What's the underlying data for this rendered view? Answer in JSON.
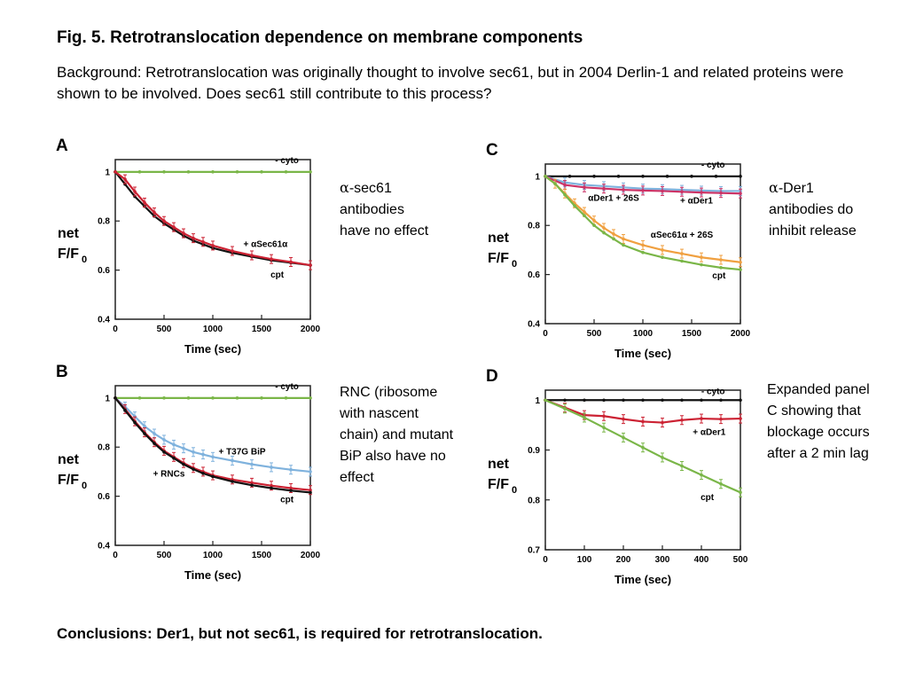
{
  "title": "Fig. 5. Retrotranslocation dependence on membrane components",
  "background_text": "Background: Retrotranslocation was originally thought to involve sec61, but in 2004 Derlin-1 and related proteins were shown to be involved. Does sec61 still contribute to this process?",
  "notes": {
    "a": {
      "greek": "α",
      "text": "-sec61 antibodies have no effect"
    },
    "b": {
      "text": "RNC (ribosome with nascent chain) and mutant BiP also have no effect"
    },
    "c": {
      "greek": "α",
      "text": "-Der1 antibodies do inhibit release"
    },
    "d": {
      "text": "Expanded panel C showing that blockage occurs after a 2 min lag"
    }
  },
  "conclusion": "Conclusions: Der1, but not sec61, is required for retrotranslocation.",
  "colors": {
    "black": "#111111",
    "green": "#7ab648",
    "red": "#cc2233",
    "blue": "#7fb2dd",
    "orange": "#f0a040",
    "pink": "#cc3366"
  },
  "chart_data": [
    {
      "panel_letter": "A",
      "type": "line",
      "xlabel": "Time (sec)",
      "ylabel_line1": "net",
      "ylabel_line2": "F/F",
      "ylabel_sub": "0",
      "xlim": [
        0,
        2000
      ],
      "ylim": [
        0.4,
        1.05
      ],
      "xticks": [
        0,
        500,
        1000,
        1500,
        2000
      ],
      "yticks": [
        0.4,
        0.6,
        0.8,
        1
      ],
      "ytick_labels": [
        "0.4",
        "0.6",
        "0.8",
        "1"
      ],
      "series": [
        {
          "name": "- cyto",
          "color": "green",
          "errorbars": false,
          "x": [
            0,
            250,
            500,
            750,
            1000,
            1250,
            1500,
            1750,
            2000
          ],
          "y": [
            1.0,
            1.0,
            1.0,
            1.0,
            1.0,
            1.0,
            1.0,
            1.0,
            1.0
          ]
        },
        {
          "name": "cpt",
          "color": "black",
          "errorbars": false,
          "x": [
            0,
            100,
            200,
            300,
            400,
            500,
            600,
            700,
            800,
            900,
            1000,
            1200,
            1400,
            1600,
            1800,
            2000
          ],
          "y": [
            1.0,
            0.95,
            0.9,
            0.86,
            0.82,
            0.79,
            0.765,
            0.74,
            0.72,
            0.705,
            0.69,
            0.67,
            0.655,
            0.64,
            0.63,
            0.62
          ]
        },
        {
          "name": "+ αSec61α",
          "color": "red",
          "errorbars": true,
          "x": [
            0,
            100,
            200,
            300,
            400,
            500,
            600,
            700,
            800,
            900,
            1000,
            1200,
            1400,
            1600,
            1800,
            2000
          ],
          "y": [
            1.0,
            0.97,
            0.92,
            0.875,
            0.835,
            0.8,
            0.775,
            0.75,
            0.73,
            0.715,
            0.7,
            0.678,
            0.66,
            0.645,
            0.633,
            0.62
          ]
        }
      ],
      "annotations": [
        {
          "text": "- cyto",
          "x": 1760,
          "y": 1.035
        },
        {
          "text": "+ αSec61α",
          "x": 1540,
          "y": 0.695
        },
        {
          "text": "cpt",
          "x": 1660,
          "y": 0.57
        }
      ]
    },
    {
      "panel_letter": "B",
      "type": "line",
      "xlabel": "Time (sec)",
      "ylabel_line1": "net",
      "ylabel_line2": "F/F",
      "ylabel_sub": "0",
      "xlim": [
        0,
        2000
      ],
      "ylim": [
        0.4,
        1.05
      ],
      "xticks": [
        0,
        500,
        1000,
        1500,
        2000
      ],
      "yticks": [
        0.4,
        0.6,
        0.8,
        1
      ],
      "ytick_labels": [
        "0.4",
        "0.6",
        "0.8",
        "1"
      ],
      "series": [
        {
          "name": "- cyto",
          "color": "green",
          "errorbars": false,
          "x": [
            0,
            250,
            500,
            750,
            1000,
            1250,
            1500,
            1750,
            2000
          ],
          "y": [
            1.0,
            1.0,
            1.0,
            1.0,
            1.0,
            1.0,
            1.0,
            1.0,
            1.0
          ]
        },
        {
          "name": "+ T37G BiP",
          "color": "blue",
          "errorbars": true,
          "x": [
            0,
            100,
            200,
            300,
            400,
            500,
            600,
            700,
            800,
            900,
            1000,
            1200,
            1400,
            1600,
            1800,
            2000
          ],
          "y": [
            1.0,
            0.965,
            0.925,
            0.885,
            0.855,
            0.83,
            0.81,
            0.795,
            0.78,
            0.77,
            0.76,
            0.745,
            0.73,
            0.718,
            0.708,
            0.7
          ]
        },
        {
          "name": "+ RNCs",
          "color": "red",
          "errorbars": true,
          "x": [
            0,
            100,
            200,
            300,
            400,
            500,
            600,
            700,
            800,
            900,
            1000,
            1200,
            1400,
            1600,
            1800,
            2000
          ],
          "y": [
            1.0,
            0.955,
            0.905,
            0.86,
            0.82,
            0.785,
            0.76,
            0.735,
            0.715,
            0.7,
            0.685,
            0.668,
            0.655,
            0.643,
            0.633,
            0.625
          ]
        },
        {
          "name": "cpt",
          "color": "black",
          "errorbars": false,
          "x": [
            0,
            100,
            200,
            300,
            400,
            500,
            600,
            700,
            800,
            900,
            1000,
            1200,
            1400,
            1600,
            1800,
            2000
          ],
          "y": [
            1.0,
            0.95,
            0.9,
            0.855,
            0.815,
            0.78,
            0.755,
            0.73,
            0.71,
            0.693,
            0.68,
            0.66,
            0.645,
            0.633,
            0.623,
            0.615
          ]
        }
      ],
      "annotations": [
        {
          "text": "- cyto",
          "x": 1760,
          "y": 1.035
        },
        {
          "text": "+ T37G BiP",
          "x": 1300,
          "y": 0.77
        },
        {
          "text": "+ RNCs",
          "x": 550,
          "y": 0.68
        },
        {
          "text": "cpt",
          "x": 1760,
          "y": 0.575
        }
      ]
    },
    {
      "panel_letter": "C",
      "type": "line",
      "xlabel": "Time (sec)",
      "ylabel_line1": "net",
      "ylabel_line2": "F/F",
      "ylabel_sub": "0",
      "xlim": [
        0,
        2000
      ],
      "ylim": [
        0.4,
        1.05
      ],
      "xticks": [
        0,
        500,
        1000,
        1500,
        2000
      ],
      "yticks": [
        0.4,
        0.6,
        0.8,
        1
      ],
      "ytick_labels": [
        "0.4",
        "0.6",
        "0.8",
        "1"
      ],
      "series": [
        {
          "name": "- cyto",
          "color": "black",
          "errorbars": false,
          "x": [
            0,
            250,
            500,
            750,
            1000,
            1250,
            1500,
            1750,
            2000
          ],
          "y": [
            1.0,
            1.0,
            1.0,
            1.0,
            1.0,
            1.0,
            1.0,
            1.0,
            1.0
          ]
        },
        {
          "name": "αDer1 + 26S",
          "color": "blue",
          "errorbars": true,
          "x": [
            0,
            200,
            400,
            600,
            800,
            1000,
            1200,
            1400,
            1600,
            1800,
            2000
          ],
          "y": [
            1.0,
            0.975,
            0.965,
            0.96,
            0.955,
            0.95,
            0.948,
            0.945,
            0.942,
            0.94,
            0.94
          ]
        },
        {
          "name": "+ αDer1",
          "color": "pink",
          "errorbars": true,
          "x": [
            0,
            200,
            400,
            600,
            800,
            1000,
            1200,
            1400,
            1600,
            1800,
            2000
          ],
          "y": [
            1.0,
            0.965,
            0.955,
            0.95,
            0.945,
            0.942,
            0.94,
            0.937,
            0.934,
            0.932,
            0.93
          ]
        },
        {
          "name": "αSec61α + 26S",
          "color": "orange",
          "errorbars": true,
          "x": [
            0,
            100,
            200,
            300,
            400,
            500,
            600,
            700,
            800,
            1000,
            1200,
            1400,
            1600,
            1800,
            2000
          ],
          "y": [
            1.0,
            0.97,
            0.93,
            0.89,
            0.855,
            0.82,
            0.79,
            0.765,
            0.745,
            0.72,
            0.7,
            0.685,
            0.67,
            0.66,
            0.65
          ]
        },
        {
          "name": "cpt",
          "color": "green",
          "errorbars": false,
          "x": [
            0,
            100,
            200,
            300,
            400,
            500,
            600,
            700,
            800,
            1000,
            1200,
            1400,
            1600,
            1800,
            2000
          ],
          "y": [
            1.0,
            0.97,
            0.925,
            0.88,
            0.84,
            0.8,
            0.77,
            0.745,
            0.72,
            0.69,
            0.67,
            0.655,
            0.64,
            0.628,
            0.62
          ]
        }
      ],
      "annotations": [
        {
          "text": "- cyto",
          "x": 1720,
          "y": 1.035
        },
        {
          "text": "αDer1 + 26S",
          "x": 700,
          "y": 0.9
        },
        {
          "text": "+ αDer1",
          "x": 1550,
          "y": 0.89
        },
        {
          "text": "αSec61α + 26S",
          "x": 1400,
          "y": 0.75
        },
        {
          "text": "cpt",
          "x": 1780,
          "y": 0.585
        }
      ]
    },
    {
      "panel_letter": "D",
      "type": "line",
      "xlabel": "Time (sec)",
      "ylabel_line1": "net",
      "ylabel_line2": "F/F",
      "ylabel_sub": "0",
      "xlim": [
        0,
        500
      ],
      "ylim": [
        0.7,
        1.02
      ],
      "xticks": [
        0,
        100,
        200,
        300,
        400,
        500
      ],
      "yticks": [
        0.7,
        0.8,
        0.9,
        1
      ],
      "ytick_labels": [
        "0.7",
        "0.8",
        "0.9",
        "1"
      ],
      "series": [
        {
          "name": "- cyto",
          "color": "black",
          "errorbars": false,
          "x": [
            0,
            50,
            100,
            150,
            200,
            250,
            300,
            350,
            400,
            450,
            500
          ],
          "y": [
            1.0,
            1.0,
            1.0,
            1.0,
            1.0,
            1.0,
            1.0,
            1.0,
            1.0,
            1.0,
            1.0
          ]
        },
        {
          "name": "+ αDer1",
          "color": "red",
          "errorbars": true,
          "x": [
            0,
            50,
            100,
            150,
            200,
            250,
            300,
            350,
            400,
            450,
            500
          ],
          "y": [
            1.0,
            0.985,
            0.97,
            0.968,
            0.962,
            0.957,
            0.955,
            0.96,
            0.963,
            0.962,
            0.963
          ]
        },
        {
          "name": "cpt",
          "color": "green",
          "errorbars": true,
          "x": [
            0,
            50,
            100,
            150,
            200,
            250,
            300,
            350,
            400,
            450,
            500
          ],
          "y": [
            1.0,
            0.983,
            0.965,
            0.945,
            0.925,
            0.905,
            0.885,
            0.868,
            0.85,
            0.832,
            0.815
          ]
        }
      ],
      "annotations": [
        {
          "text": "- cyto",
          "x": 430,
          "y": 1.012
        },
        {
          "text": "+ αDer1",
          "x": 420,
          "y": 0.93
        },
        {
          "text": "cpt",
          "x": 415,
          "y": 0.8
        }
      ]
    }
  ]
}
